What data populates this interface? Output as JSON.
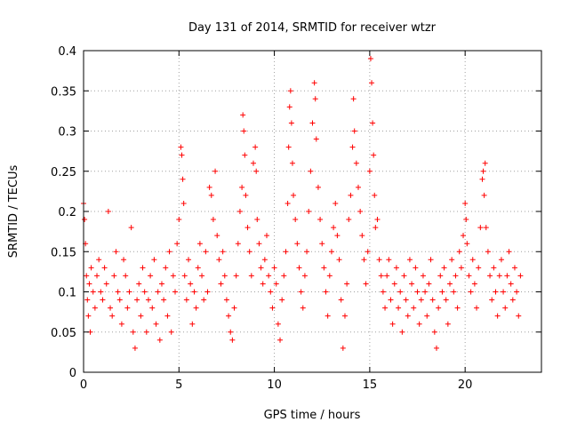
{
  "chart_data": {
    "type": "scatter",
    "title": "Day 131 of 2014, SRMTID for receiver wtzr",
    "xlabel": "GPS time / hours",
    "ylabel": "SRMTID / TECUs",
    "xlim": [
      0,
      24
    ],
    "ylim": [
      0,
      0.4
    ],
    "x_ticks": [
      0,
      5,
      10,
      15,
      20
    ],
    "x_tick_labels": [
      "0",
      "5",
      "10",
      "15",
      "20"
    ],
    "y_ticks": [
      0,
      0.05,
      0.1,
      0.15,
      0.2,
      0.25,
      0.3,
      0.35,
      0.4
    ],
    "y_tick_labels": [
      "0",
      "0.05",
      "0.1",
      "0.15",
      "0.2",
      "0.25",
      "0.3",
      "0.35",
      "0.4"
    ],
    "grid": true,
    "marker": "plus",
    "series": [
      {
        "name": "SRMTID",
        "color": "#ff0000",
        "points": [
          [
            0.0,
            0.21
          ],
          [
            0.05,
            0.19
          ],
          [
            0.1,
            0.16
          ],
          [
            0.15,
            0.12
          ],
          [
            0.2,
            0.09
          ],
          [
            0.25,
            0.07
          ],
          [
            0.3,
            0.11
          ],
          [
            0.35,
            0.05
          ],
          [
            0.4,
            0.13
          ],
          [
            0.5,
            0.1
          ],
          [
            0.6,
            0.08
          ],
          [
            0.7,
            0.12
          ],
          [
            0.8,
            0.14
          ],
          [
            0.9,
            0.1
          ],
          [
            1.0,
            0.09
          ],
          [
            1.1,
            0.13
          ],
          [
            1.2,
            0.11
          ],
          [
            1.3,
            0.2
          ],
          [
            1.4,
            0.08
          ],
          [
            1.5,
            0.07
          ],
          [
            1.6,
            0.12
          ],
          [
            1.7,
            0.15
          ],
          [
            1.8,
            0.1
          ],
          [
            1.9,
            0.09
          ],
          [
            2.0,
            0.06
          ],
          [
            2.1,
            0.14
          ],
          [
            2.2,
            0.12
          ],
          [
            2.3,
            0.08
          ],
          [
            2.4,
            0.1
          ],
          [
            2.5,
            0.18
          ],
          [
            2.6,
            0.05
          ],
          [
            2.7,
            0.03
          ],
          [
            2.8,
            0.09
          ],
          [
            2.9,
            0.11
          ],
          [
            3.0,
            0.07
          ],
          [
            3.1,
            0.13
          ],
          [
            3.2,
            0.1
          ],
          [
            3.3,
            0.05
          ],
          [
            3.4,
            0.09
          ],
          [
            3.5,
            0.12
          ],
          [
            3.6,
            0.08
          ],
          [
            3.7,
            0.14
          ],
          [
            3.8,
            0.06
          ],
          [
            3.9,
            0.1
          ],
          [
            4.0,
            0.04
          ],
          [
            4.1,
            0.11
          ],
          [
            4.2,
            0.09
          ],
          [
            4.3,
            0.13
          ],
          [
            4.4,
            0.07
          ],
          [
            4.5,
            0.15
          ],
          [
            4.6,
            0.05
          ],
          [
            4.7,
            0.12
          ],
          [
            4.8,
            0.1
          ],
          [
            4.9,
            0.16
          ],
          [
            5.0,
            0.19
          ],
          [
            5.1,
            0.28
          ],
          [
            5.15,
            0.27
          ],
          [
            5.2,
            0.24
          ],
          [
            5.25,
            0.21
          ],
          [
            5.3,
            0.12
          ],
          [
            5.4,
            0.09
          ],
          [
            5.5,
            0.14
          ],
          [
            5.6,
            0.11
          ],
          [
            5.7,
            0.06
          ],
          [
            5.8,
            0.1
          ],
          [
            5.9,
            0.08
          ],
          [
            6.0,
            0.13
          ],
          [
            6.1,
            0.16
          ],
          [
            6.2,
            0.12
          ],
          [
            6.3,
            0.09
          ],
          [
            6.4,
            0.15
          ],
          [
            6.5,
            0.1
          ],
          [
            6.6,
            0.23
          ],
          [
            6.7,
            0.22
          ],
          [
            6.8,
            0.19
          ],
          [
            6.9,
            0.25
          ],
          [
            7.0,
            0.17
          ],
          [
            7.1,
            0.14
          ],
          [
            7.2,
            0.11
          ],
          [
            7.3,
            0.15
          ],
          [
            7.4,
            0.12
          ],
          [
            7.5,
            0.09
          ],
          [
            7.6,
            0.07
          ],
          [
            7.7,
            0.05
          ],
          [
            7.8,
            0.04
          ],
          [
            7.9,
            0.08
          ],
          [
            8.0,
            0.12
          ],
          [
            8.1,
            0.16
          ],
          [
            8.2,
            0.2
          ],
          [
            8.3,
            0.23
          ],
          [
            8.35,
            0.32
          ],
          [
            8.4,
            0.3
          ],
          [
            8.45,
            0.27
          ],
          [
            8.5,
            0.22
          ],
          [
            8.6,
            0.18
          ],
          [
            8.7,
            0.15
          ],
          [
            8.8,
            0.12
          ],
          [
            8.9,
            0.26
          ],
          [
            9.0,
            0.28
          ],
          [
            9.05,
            0.25
          ],
          [
            9.1,
            0.19
          ],
          [
            9.2,
            0.16
          ],
          [
            9.3,
            0.13
          ],
          [
            9.4,
            0.11
          ],
          [
            9.5,
            0.14
          ],
          [
            9.6,
            0.17
          ],
          [
            9.7,
            0.12
          ],
          [
            9.8,
            0.1
          ],
          [
            9.9,
            0.08
          ],
          [
            10.0,
            0.13
          ],
          [
            10.1,
            0.11
          ],
          [
            10.2,
            0.06
          ],
          [
            10.3,
            0.04
          ],
          [
            10.4,
            0.09
          ],
          [
            10.5,
            0.12
          ],
          [
            10.6,
            0.15
          ],
          [
            10.7,
            0.21
          ],
          [
            10.75,
            0.28
          ],
          [
            10.8,
            0.33
          ],
          [
            10.85,
            0.35
          ],
          [
            10.9,
            0.31
          ],
          [
            10.95,
            0.26
          ],
          [
            11.0,
            0.22
          ],
          [
            11.1,
            0.19
          ],
          [
            11.2,
            0.16
          ],
          [
            11.3,
            0.13
          ],
          [
            11.4,
            0.1
          ],
          [
            11.5,
            0.08
          ],
          [
            11.6,
            0.12
          ],
          [
            11.7,
            0.15
          ],
          [
            11.8,
            0.2
          ],
          [
            11.9,
            0.25
          ],
          [
            12.0,
            0.31
          ],
          [
            12.1,
            0.36
          ],
          [
            12.15,
            0.34
          ],
          [
            12.2,
            0.29
          ],
          [
            12.3,
            0.23
          ],
          [
            12.4,
            0.19
          ],
          [
            12.5,
            0.16
          ],
          [
            12.6,
            0.13
          ],
          [
            12.7,
            0.1
          ],
          [
            12.8,
            0.07
          ],
          [
            12.9,
            0.12
          ],
          [
            13.0,
            0.15
          ],
          [
            13.1,
            0.18
          ],
          [
            13.2,
            0.21
          ],
          [
            13.3,
            0.17
          ],
          [
            13.4,
            0.14
          ],
          [
            13.5,
            0.09
          ],
          [
            13.6,
            0.03
          ],
          [
            13.7,
            0.07
          ],
          [
            13.8,
            0.11
          ],
          [
            13.9,
            0.19
          ],
          [
            14.0,
            0.22
          ],
          [
            14.1,
            0.28
          ],
          [
            14.15,
            0.34
          ],
          [
            14.2,
            0.3
          ],
          [
            14.3,
            0.26
          ],
          [
            14.4,
            0.23
          ],
          [
            14.5,
            0.2
          ],
          [
            14.6,
            0.17
          ],
          [
            14.7,
            0.14
          ],
          [
            14.8,
            0.11
          ],
          [
            14.9,
            0.15
          ],
          [
            15.0,
            0.25
          ],
          [
            15.05,
            0.39
          ],
          [
            15.1,
            0.36
          ],
          [
            15.15,
            0.31
          ],
          [
            15.2,
            0.27
          ],
          [
            15.25,
            0.22
          ],
          [
            15.3,
            0.18
          ],
          [
            15.4,
            0.19
          ],
          [
            15.5,
            0.14
          ],
          [
            15.6,
            0.12
          ],
          [
            15.7,
            0.1
          ],
          [
            15.8,
            0.08
          ],
          [
            15.9,
            0.12
          ],
          [
            16.0,
            0.14
          ],
          [
            16.1,
            0.09
          ],
          [
            16.2,
            0.06
          ],
          [
            16.3,
            0.11
          ],
          [
            16.4,
            0.13
          ],
          [
            16.5,
            0.08
          ],
          [
            16.6,
            0.1
          ],
          [
            16.7,
            0.05
          ],
          [
            16.8,
            0.12
          ],
          [
            16.9,
            0.09
          ],
          [
            17.0,
            0.07
          ],
          [
            17.1,
            0.14
          ],
          [
            17.2,
            0.11
          ],
          [
            17.3,
            0.08
          ],
          [
            17.4,
            0.13
          ],
          [
            17.5,
            0.1
          ],
          [
            17.6,
            0.06
          ],
          [
            17.7,
            0.09
          ],
          [
            17.8,
            0.12
          ],
          [
            17.9,
            0.1
          ],
          [
            18.0,
            0.07
          ],
          [
            18.1,
            0.11
          ],
          [
            18.2,
            0.14
          ],
          [
            18.3,
            0.09
          ],
          [
            18.4,
            0.05
          ],
          [
            18.5,
            0.03
          ],
          [
            18.6,
            0.08
          ],
          [
            18.7,
            0.12
          ],
          [
            18.8,
            0.1
          ],
          [
            18.9,
            0.13
          ],
          [
            19.0,
            0.09
          ],
          [
            19.1,
            0.06
          ],
          [
            19.2,
            0.11
          ],
          [
            19.3,
            0.14
          ],
          [
            19.4,
            0.1
          ],
          [
            19.5,
            0.12
          ],
          [
            19.6,
            0.08
          ],
          [
            19.7,
            0.15
          ],
          [
            19.8,
            0.13
          ],
          [
            19.9,
            0.17
          ],
          [
            20.0,
            0.21
          ],
          [
            20.05,
            0.19
          ],
          [
            20.1,
            0.16
          ],
          [
            20.2,
            0.12
          ],
          [
            20.3,
            0.1
          ],
          [
            20.4,
            0.14
          ],
          [
            20.5,
            0.11
          ],
          [
            20.6,
            0.08
          ],
          [
            20.7,
            0.13
          ],
          [
            20.8,
            0.18
          ],
          [
            20.9,
            0.24
          ],
          [
            20.95,
            0.25
          ],
          [
            21.0,
            0.22
          ],
          [
            21.05,
            0.26
          ],
          [
            21.1,
            0.18
          ],
          [
            21.2,
            0.15
          ],
          [
            21.3,
            0.12
          ],
          [
            21.4,
            0.09
          ],
          [
            21.5,
            0.13
          ],
          [
            21.6,
            0.1
          ],
          [
            21.7,
            0.07
          ],
          [
            21.8,
            0.12
          ],
          [
            21.9,
            0.14
          ],
          [
            22.0,
            0.1
          ],
          [
            22.1,
            0.08
          ],
          [
            22.2,
            0.12
          ],
          [
            22.3,
            0.15
          ],
          [
            22.4,
            0.11
          ],
          [
            22.5,
            0.09
          ],
          [
            22.6,
            0.13
          ],
          [
            22.7,
            0.1
          ],
          [
            22.8,
            0.07
          ],
          [
            22.9,
            0.12
          ]
        ]
      }
    ]
  }
}
